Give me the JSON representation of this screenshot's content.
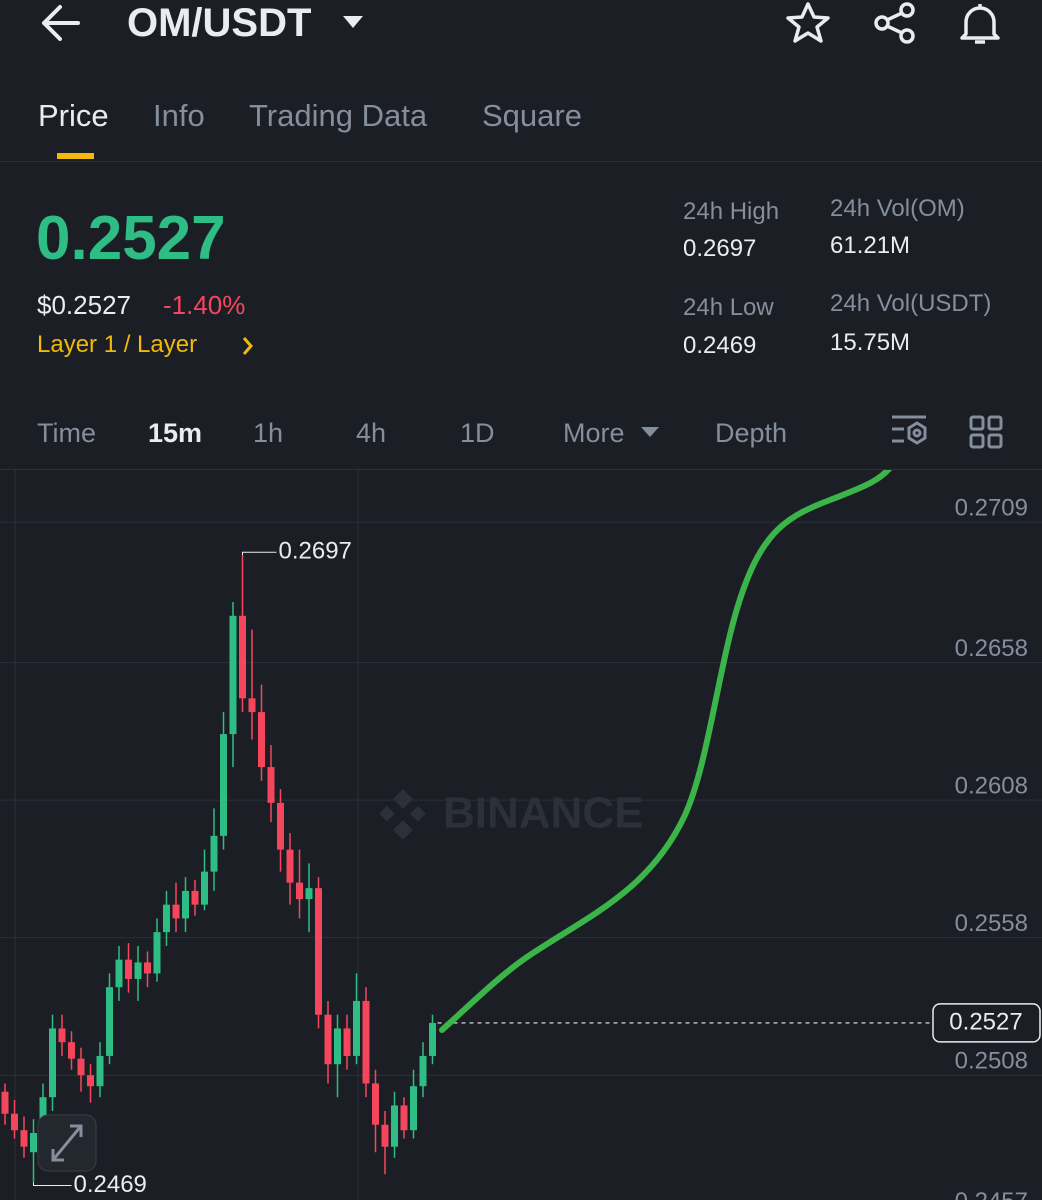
{
  "header": {
    "pair": "OM/USDT"
  },
  "tabs": [
    "Price",
    "Info",
    "Trading Data",
    "Square"
  ],
  "market": {
    "price": "0.2527",
    "usd_price": "$0.2527",
    "change": "-1.40%",
    "sector": "Layer 1 / Layer",
    "stats": [
      {
        "label": "24h High",
        "value": "0.2697"
      },
      {
        "label": "24h Vol(OM)",
        "value": "61.21M"
      },
      {
        "label": "24h Low",
        "value": "0.2469"
      },
      {
        "label": "24h Vol(USDT)",
        "value": "15.75M"
      }
    ]
  },
  "intervals": [
    "Time",
    "15m",
    "1h",
    "4h",
    "1D",
    "More",
    "Depth"
  ],
  "chart_data": {
    "type": "candlestick",
    "watermark": "BINANCE",
    "up_color": "#2ebd85",
    "down_color": "#f6465d",
    "open": [
      0.2502,
      0.2494,
      0.2488,
      0.248,
      0.2487,
      0.25,
      0.2525,
      0.252,
      0.2514,
      0.2508,
      0.2504,
      0.2515,
      0.254,
      0.255,
      0.2543,
      0.2549,
      0.2545,
      0.256,
      0.257,
      0.2565,
      0.2575,
      0.257,
      0.2582,
      0.2595,
      0.2632,
      0.2675,
      0.2645,
      0.264,
      0.262,
      0.2607,
      0.259,
      0.2578,
      0.2572,
      0.2576,
      0.253,
      0.2512,
      0.2525,
      0.2515,
      0.2535,
      0.2505,
      0.249,
      0.2482,
      0.2497,
      0.2488,
      0.2504,
      0.2515
    ],
    "high": [
      0.2505,
      0.2499,
      0.2493,
      0.2492,
      0.2505,
      0.253,
      0.253,
      0.2524,
      0.2518,
      0.2512,
      0.252,
      0.2545,
      0.2555,
      0.2556,
      0.2555,
      0.2553,
      0.2565,
      0.2575,
      0.2578,
      0.258,
      0.2579,
      0.259,
      0.2605,
      0.264,
      0.268,
      0.2697,
      0.267,
      0.265,
      0.2628,
      0.2612,
      0.2596,
      0.259,
      0.2585,
      0.258,
      0.2535,
      0.253,
      0.253,
      0.2545,
      0.254,
      0.251,
      0.2495,
      0.2502,
      0.25,
      0.251,
      0.252,
      0.253
    ],
    "low": [
      0.249,
      0.2485,
      0.2478,
      0.2469,
      0.2483,
      0.2495,
      0.2515,
      0.251,
      0.2502,
      0.2498,
      0.25,
      0.2512,
      0.2535,
      0.2538,
      0.2535,
      0.254,
      0.2542,
      0.2555,
      0.256,
      0.256,
      0.2566,
      0.2568,
      0.2575,
      0.259,
      0.262,
      0.264,
      0.263,
      0.2615,
      0.26,
      0.2582,
      0.257,
      0.2565,
      0.256,
      0.2525,
      0.2505,
      0.25,
      0.251,
      0.2512,
      0.25,
      0.248,
      0.2472,
      0.2478,
      0.2485,
      0.2485,
      0.25,
      0.2512
    ],
    "close": [
      0.2494,
      0.2488,
      0.2482,
      0.2487,
      0.25,
      0.2525,
      0.252,
      0.2514,
      0.2508,
      0.2504,
      0.2515,
      0.254,
      0.255,
      0.2543,
      0.2549,
      0.2545,
      0.256,
      0.257,
      0.2565,
      0.2575,
      0.257,
      0.2582,
      0.2595,
      0.2632,
      0.2675,
      0.2645,
      0.264,
      0.262,
      0.2607,
      0.259,
      0.2578,
      0.2572,
      0.2576,
      0.253,
      0.2512,
      0.2525,
      0.2515,
      0.2535,
      0.2505,
      0.249,
      0.2482,
      0.2497,
      0.2488,
      0.2504,
      0.2515,
      0.2527
    ],
    "max_annotation": 0.2697,
    "min_annotation": 0.2469,
    "last_price": 0.2527,
    "ylim": [
      0.2455,
      0.2728
    ],
    "yticks": [
      0.2709,
      0.2658,
      0.2608,
      0.2558,
      0.2508,
      0.2457
    ],
    "grid": true
  }
}
